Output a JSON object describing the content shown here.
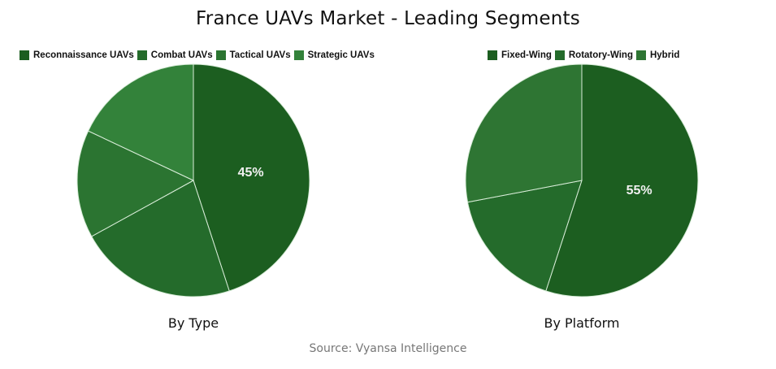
{
  "title": "France UAVs Market - Leading Segments",
  "source": "Source: Vyansa Intelligence",
  "charts": [
    {
      "label": "By Type",
      "legend": [
        {
          "name": "Reconnaissance UAVs",
          "color": "#1c5e20"
        },
        {
          "name": "Combat UAVs",
          "color": "#246b2b"
        },
        {
          "name": "Tactical UAVs",
          "color": "#2b7431"
        },
        {
          "name": "Strategic UAVs",
          "color": "#33823a"
        }
      ],
      "shown_label": "45%"
    },
    {
      "label": "By Platform",
      "legend": [
        {
          "name": "Fixed-Wing",
          "color": "#1c5e20"
        },
        {
          "name": "Rotatory-Wing",
          "color": "#246b2b"
        },
        {
          "name": "Hybrid",
          "color": "#2e7533"
        }
      ],
      "shown_label": "55%"
    }
  ],
  "chart_data": [
    {
      "type": "pie",
      "title": "By Type",
      "categories": [
        "Reconnaissance UAVs",
        "Combat UAVs",
        "Tactical UAVs",
        "Strategic UAVs"
      ],
      "values": [
        45,
        22,
        15,
        18
      ],
      "colors": [
        "#1c5e20",
        "#246b2b",
        "#2b7431",
        "#33823a"
      ],
      "data_labels": [
        "45%",
        "",
        "",
        ""
      ],
      "legend_position": "top"
    },
    {
      "type": "pie",
      "title": "By Platform",
      "categories": [
        "Fixed-Wing",
        "Rotatory-Wing",
        "Hybrid"
      ],
      "values": [
        55,
        17,
        28
      ],
      "colors": [
        "#1c5e20",
        "#246b2b",
        "#2e7533"
      ],
      "data_labels": [
        "55%",
        "",
        ""
      ],
      "legend_position": "top"
    }
  ]
}
